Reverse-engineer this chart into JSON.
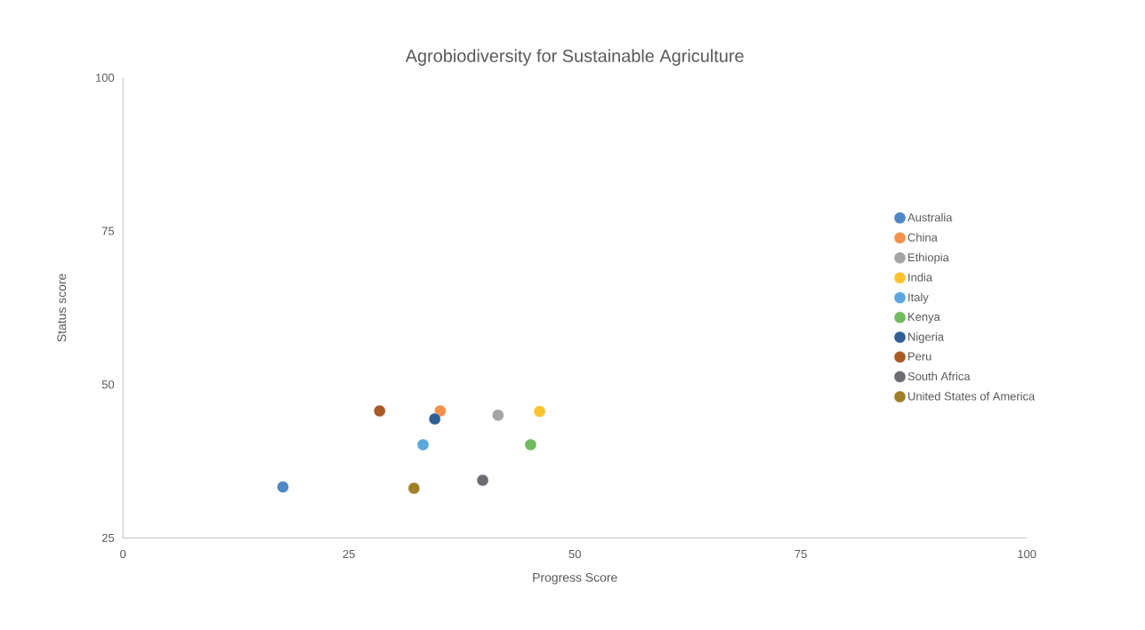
{
  "chart_data": {
    "type": "scatter",
    "title": "Agrobiodiversity for Sustainable Agriculture",
    "xlabel": "Progress Score",
    "ylabel": "Status score",
    "xlim": [
      0,
      100
    ],
    "xticks": [
      0,
      25,
      50,
      75,
      100
    ],
    "ylim": [
      25,
      100
    ],
    "yticks": [
      25,
      50,
      75,
      100
    ],
    "legend": "right",
    "marker": "circle",
    "series": [
      {
        "name": "Australia",
        "color": "#4e86c6",
        "x": [
          17.7
        ],
        "values": [
          33.3
        ]
      },
      {
        "name": "China",
        "color": "#f4914a",
        "x": [
          35.1
        ],
        "values": [
          45.7
        ]
      },
      {
        "name": "Ethiopia",
        "color": "#a5a5a5",
        "x": [
          41.5
        ],
        "values": [
          45.0
        ]
      },
      {
        "name": "India",
        "color": "#fdc32d",
        "x": [
          46.1
        ],
        "values": [
          45.6
        ]
      },
      {
        "name": "Italy",
        "color": "#5ba6dd",
        "x": [
          33.2
        ],
        "values": [
          40.2
        ]
      },
      {
        "name": "Kenya",
        "color": "#72bb5f",
        "x": [
          45.1
        ],
        "values": [
          40.2
        ]
      },
      {
        "name": "Nigeria",
        "color": "#2f5f93",
        "x": [
          34.5
        ],
        "values": [
          44.4
        ]
      },
      {
        "name": "Peru",
        "color": "#a85a24",
        "x": [
          28.4
        ],
        "values": [
          45.7
        ]
      },
      {
        "name": "South Africa",
        "color": "#6b6d70",
        "x": [
          39.8
        ],
        "values": [
          34.4
        ]
      },
      {
        "name": "United States of America",
        "color": "#a07f28",
        "x": [
          32.2
        ],
        "values": [
          33.1
        ]
      }
    ]
  }
}
